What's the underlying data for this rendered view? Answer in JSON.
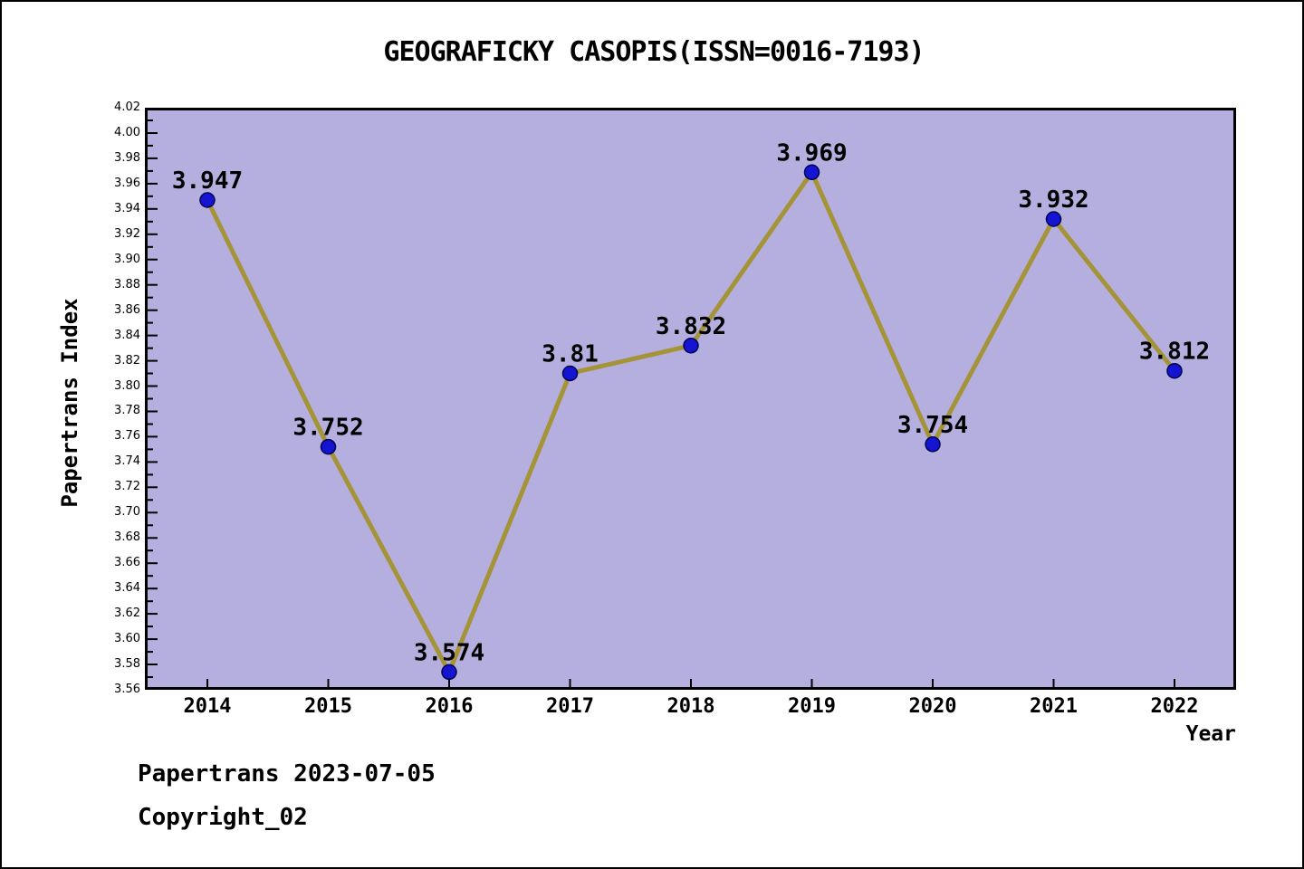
{
  "figure": {
    "footer_line1": "Papertrans 2023-07-05",
    "footer_line2": "Copyright_02"
  },
  "chart_data": {
    "type": "line",
    "title": "GEOGRAFICKY CASOPIS(ISSN=0016-7193)",
    "xlabel": "Year",
    "ylabel": "Papertrans Index",
    "x": [
      2014,
      2015,
      2016,
      2017,
      2018,
      2019,
      2020,
      2021,
      2022
    ],
    "x_tick_labels": [
      "2014",
      "2015",
      "2016",
      "2017",
      "2018",
      "2019",
      "2020",
      "2021",
      "2022"
    ],
    "values": [
      3.947,
      3.752,
      3.574,
      3.81,
      3.832,
      3.969,
      3.754,
      3.932,
      3.812
    ],
    "point_labels": [
      "3.947",
      "3.752",
      "3.574",
      "3.81",
      "3.832",
      "3.969",
      "3.754",
      "3.932",
      "3.812"
    ],
    "ylim": [
      3.56,
      4.02
    ],
    "y_major_step": 0.02,
    "y_minor_step": 0.01,
    "y_tick_labels": [
      "3.56",
      "3.58",
      "3.60",
      "3.62",
      "3.64",
      "3.66",
      "3.68",
      "3.70",
      "3.72",
      "3.74",
      "3.76",
      "3.78",
      "3.80",
      "3.82",
      "3.84",
      "3.86",
      "3.88",
      "3.90",
      "3.92",
      "3.94",
      "3.96",
      "3.98",
      "4.00",
      "4.02"
    ],
    "grid": false,
    "legend": "none",
    "colors": {
      "plot_bg": "#b5afe0",
      "line": "#a59437",
      "marker_fill": "#1414d2",
      "marker_edge": "#000050",
      "axis": "#000000",
      "text": "#000000"
    }
  }
}
